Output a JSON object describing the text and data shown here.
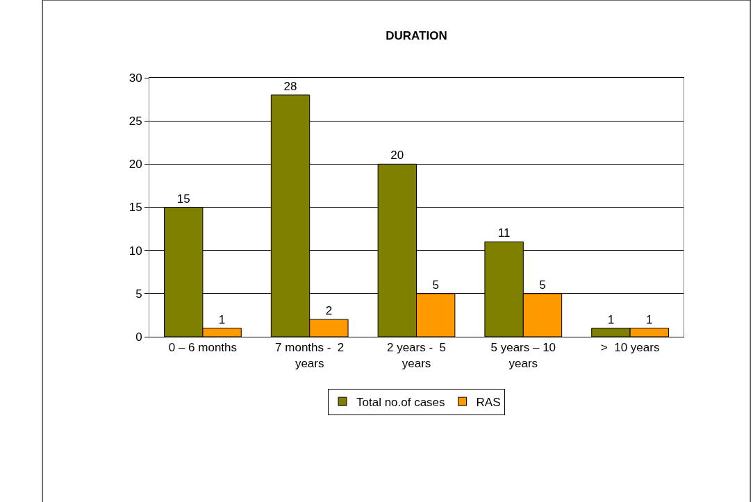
{
  "chart_data": {
    "type": "bar",
    "title": "DURATION",
    "categories": [
      "0 – 6 months",
      "7 months -  2 years",
      "2 years -  5 years",
      "5 years – 10 years",
      ">  10 years"
    ],
    "series": [
      {
        "name": "Total no.of cases",
        "color": "#808000",
        "values": [
          15,
          28,
          20,
          11,
          1
        ]
      },
      {
        "name": "RAS",
        "color": "#ff9900",
        "values": [
          1,
          2,
          5,
          5,
          1
        ]
      }
    ],
    "ylim": [
      0,
      30
    ],
    "yticks": [
      0,
      5,
      10,
      15,
      20,
      25,
      30
    ],
    "grid": "y",
    "legend": "bottom",
    "data_labels": true
  }
}
